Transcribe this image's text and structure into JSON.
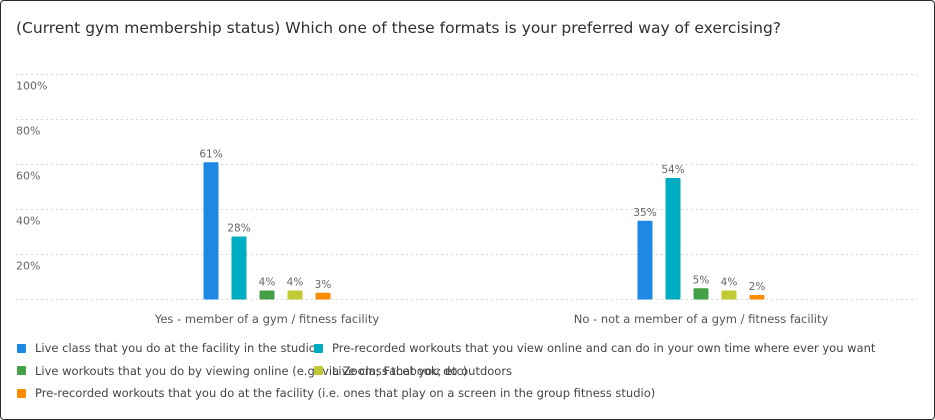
{
  "title": "(Current gym membership status) Which one of these formats is your preferred way of exercising?",
  "chart_data": {
    "type": "bar",
    "title": "(Current gym membership status) Which one of these formats is your preferred way of exercising?",
    "xlabel": "",
    "ylabel": "",
    "ylim": [
      0,
      100
    ],
    "y_ticks": [
      "20%",
      "40%",
      "60%",
      "80%",
      "100%"
    ],
    "grid": true,
    "legend_position": "bottom",
    "categories": [
      "Yes - member of a gym / fitness facility",
      "No - not a member of a gym / fitness facility"
    ],
    "series": [
      {
        "name": "Live class that you do at the facility in the studio",
        "color": "#1e88e5",
        "values": [
          61,
          35
        ],
        "labels": [
          "61%",
          "35%"
        ]
      },
      {
        "name": "Pre-recorded workouts that you view online and can do in your own time where ever you want",
        "color": "#00acc1",
        "values": [
          28,
          54
        ],
        "labels": [
          "28%",
          "54%"
        ]
      },
      {
        "name": "Live workouts that you do by viewing online (e.g. via Zoom; Facebook; etc)",
        "color": "#43a047",
        "values": [
          4,
          5
        ],
        "labels": [
          "4%",
          "5%"
        ]
      },
      {
        "name": "Live class that you do outdoors",
        "color": "#c0ca33",
        "values": [
          4,
          4
        ],
        "labels": [
          "4%",
          "4%"
        ]
      },
      {
        "name": "Pre-recorded workouts that you do at the facility (i.e. ones that play on a screen in the group fitness studio)",
        "color": "#fb8c00",
        "values": [
          3,
          2
        ],
        "labels": [
          "3%",
          "2%"
        ]
      }
    ]
  }
}
